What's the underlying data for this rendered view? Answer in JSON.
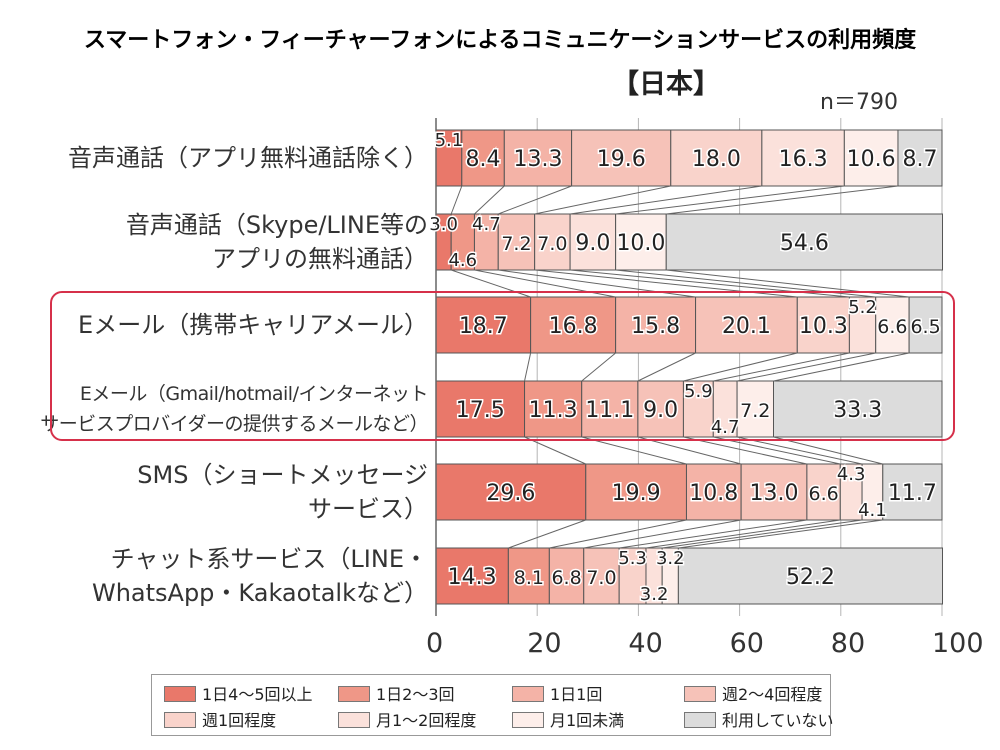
{
  "title": "スマートフォン・フィーチャーフォンによるコミュニケーションサービスの利用頻度",
  "subtitle": "【日本】",
  "sample": "n＝790",
  "chart_data": {
    "type": "bar",
    "orientation": "horizontal-stacked-100",
    "categories": [
      [
        "音声通話（アプリ無料通話除く）"
      ],
      [
        "音声通話（Skype/LINE等の",
        "アプリの無料通話）"
      ],
      [
        "Eメール（携帯キャリアメール）"
      ],
      [
        "Eメール（Gmail/hotmail/インターネット",
        "サービスプロバイダーの提供するメールなど）"
      ],
      [
        "SMS（ショートメッセージ",
        "サービス）"
      ],
      [
        "チャット系サービス（LINE・",
        "WhatsApp・Kakaotalkなど）"
      ]
    ],
    "series": [
      {
        "name": "1日4〜5回以上",
        "color": "#e9786a",
        "values": [
          5.1,
          3.0,
          18.7,
          17.5,
          29.6,
          14.3
        ]
      },
      {
        "name": "1日2〜3回",
        "color": "#ef9787",
        "values": [
          8.4,
          4.6,
          16.8,
          11.3,
          19.9,
          8.1
        ]
      },
      {
        "name": "1日1回",
        "color": "#f4b3a7",
        "values": [
          13.3,
          4.7,
          15.8,
          11.1,
          10.8,
          6.8
        ]
      },
      {
        "name": "週2〜4回程度",
        "color": "#f6c2b8",
        "values": [
          19.6,
          7.2,
          20.1,
          9.0,
          13.0,
          7.0
        ]
      },
      {
        "name": "週1回程度",
        "color": "#f9d3cb",
        "values": [
          18.0,
          7.0,
          10.3,
          5.9,
          6.6,
          5.3
        ]
      },
      {
        "name": "月1〜2回程度",
        "color": "#fbe1db",
        "values": [
          16.3,
          9.0,
          5.2,
          4.7,
          4.3,
          3.2
        ]
      },
      {
        "name": "月1回未満",
        "color": "#fdeeea",
        "values": [
          10.6,
          10.0,
          6.6,
          7.2,
          4.1,
          3.2
        ]
      },
      {
        "name": "利用していない",
        "color": "#dcdcdc",
        "values": [
          8.7,
          54.6,
          6.5,
          33.3,
          11.7,
          52.2
        ]
      }
    ],
    "xlim": [
      0,
      100
    ],
    "xticks": [
      "0",
      "20",
      "40",
      "60",
      "80",
      "100（%）"
    ],
    "grid": true,
    "legend_position": "bottom",
    "highlight_categories": [
      2,
      3
    ]
  }
}
